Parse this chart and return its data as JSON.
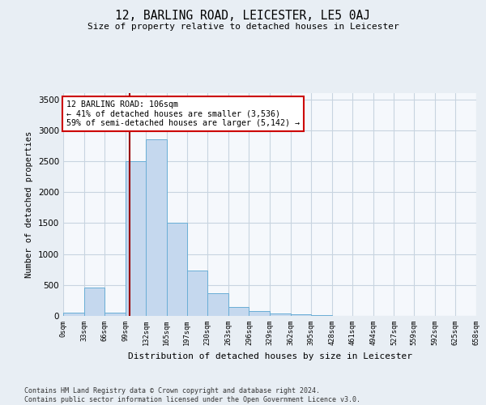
{
  "title": "12, BARLING ROAD, LEICESTER, LE5 0AJ",
  "subtitle": "Size of property relative to detached houses in Leicester",
  "xlabel": "Distribution of detached houses by size in Leicester",
  "ylabel": "Number of detached properties",
  "bin_edges": [
    0,
    33,
    66,
    99,
    132,
    165,
    197,
    230,
    263,
    296,
    329,
    362,
    395,
    428,
    461,
    494,
    527,
    559,
    592,
    625,
    658
  ],
  "bar_heights": [
    50,
    460,
    50,
    2500,
    2850,
    1500,
    730,
    370,
    150,
    80,
    40,
    20,
    10,
    5,
    3,
    2,
    1,
    1,
    1,
    1
  ],
  "bar_color": "#c5d8ee",
  "bar_edge_color": "#6aaed6",
  "property_size": 106,
  "vline_color": "#990000",
  "annotation_text": "12 BARLING ROAD: 106sqm\n← 41% of detached houses are smaller (3,536)\n59% of semi-detached houses are larger (5,142) →",
  "annotation_box_color": "#ffffff",
  "annotation_box_edge": "#cc0000",
  "ylim": [
    0,
    3600
  ],
  "yticks": [
    0,
    500,
    1000,
    1500,
    2000,
    2500,
    3000,
    3500
  ],
  "tick_labels": [
    "0sqm",
    "33sqm",
    "66sqm",
    "99sqm",
    "132sqm",
    "165sqm",
    "197sqm",
    "230sqm",
    "263sqm",
    "296sqm",
    "329sqm",
    "362sqm",
    "395sqm",
    "428sqm",
    "461sqm",
    "494sqm",
    "527sqm",
    "559sqm",
    "592sqm",
    "625sqm",
    "658sqm"
  ],
  "footer": "Contains HM Land Registry data © Crown copyright and database right 2024.\nContains public sector information licensed under the Open Government Licence v3.0.",
  "bg_color": "#e8eef4",
  "plot_bg_color": "#f5f8fc",
  "grid_color": "#c8d4e0"
}
